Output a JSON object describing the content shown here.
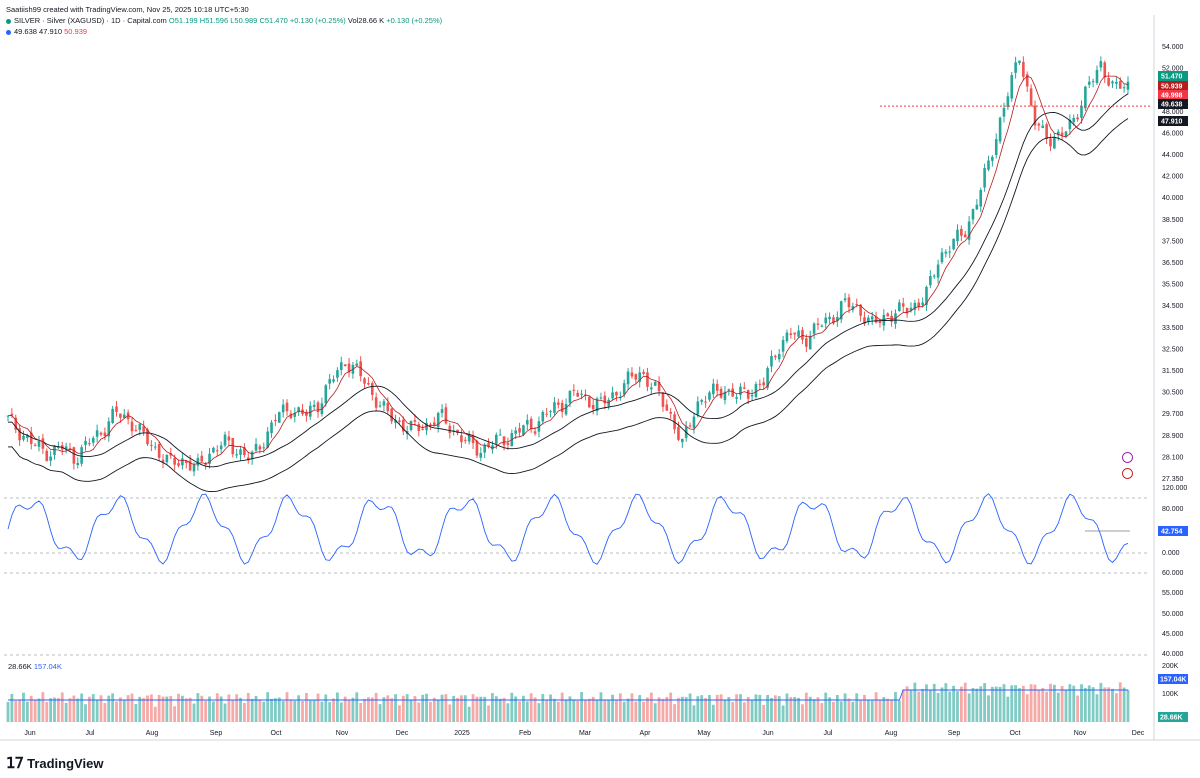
{
  "header": {
    "creator_line": "Saatiish99 created with TradingView.com, Nov 25, 2025 10:18 UTC+5:30",
    "symbol": "SILVER · Silver (XAGUSD) · 1D · Capital.com",
    "ohlc": {
      "o": "O51.199",
      "h": "H51.596",
      "l": "L50.989",
      "c": "C51.470",
      "chg": "+0.130 (+0.25%)"
    },
    "vol": "Vol28.66 K",
    "vol_chg": "+0.130 (+0.25%)",
    "ma_values": {
      "a": "49.638",
      "b": "47.910",
      "c": "50.939"
    }
  },
  "price_tags": [
    {
      "label": "51.470",
      "color": "#089981"
    },
    {
      "label": "50.939",
      "color": "#b71c1c"
    },
    {
      "label": "49.998",
      "color": "#f23645"
    },
    {
      "label": "49.638",
      "color": "#131722"
    },
    {
      "label": "47.910",
      "color": "#131722"
    }
  ],
  "osc_tag": {
    "label": "42.754",
    "color": "#2962ff"
  },
  "vol_tags": [
    {
      "label": "157.04K",
      "color": "#2962ff"
    },
    {
      "label": "28.66K",
      "color": "#26a69a"
    }
  ],
  "volume_legend": {
    "vol": "28.66K",
    "ma": "157.04K"
  },
  "footer": {
    "brand": "TradingView"
  },
  "chart_data": {
    "type": "candlestick",
    "title": "SILVER · Silver (XAGUSD) · 1D · Capital.com",
    "price_axis_ticks": [
      "54.000",
      "52.000",
      "50.000",
      "48.000",
      "46.000",
      "44.000",
      "42.000",
      "40.000",
      "38.500",
      "37.500",
      "36.500",
      "35.500",
      "34.500",
      "33.500",
      "32.500",
      "31.500",
      "30.500",
      "29.700",
      "28.900",
      "28.100",
      "27.350"
    ],
    "oscillator_axis_ticks": [
      "120.000",
      "80.000",
      "40.000",
      "0.000",
      "60.000",
      "55.000",
      "50.000",
      "45.000",
      "40.000"
    ],
    "volume_axis_ticks": [
      "200K",
      "100K"
    ],
    "x_ticks": [
      "Jun",
      "Jul",
      "Aug",
      "Sep",
      "Oct",
      "Nov",
      "Dec",
      "2025",
      "Feb",
      "Mar",
      "Apr",
      "May",
      "Jun",
      "Jul",
      "Aug",
      "Sep",
      "Oct",
      "Nov",
      "Dec"
    ],
    "close_path": [
      [
        "Jun",
        31.0
      ],
      [
        "",
        30.2
      ],
      [
        "",
        29.4
      ],
      [
        "",
        29.0
      ],
      [
        "",
        29.3
      ],
      [
        "",
        28.7
      ],
      [
        "",
        29.6
      ],
      [
        "",
        30.4
      ],
      [
        "Jul",
        31.4
      ],
      [
        "",
        31.0
      ],
      [
        "",
        30.0
      ],
      [
        "",
        29.2
      ],
      [
        "Aug",
        28.3
      ],
      [
        "",
        28.6
      ],
      [
        "",
        28.0
      ],
      [
        "",
        29.1
      ],
      [
        "",
        29.6
      ],
      [
        "Sep",
        29.2
      ],
      [
        "",
        28.6
      ],
      [
        "",
        29.9
      ],
      [
        "",
        31.3
      ],
      [
        "",
        31.7
      ],
      [
        "Oct",
        31.2
      ],
      [
        "",
        32.0
      ],
      [
        "",
        33.4
      ],
      [
        "",
        34.6
      ],
      [
        "",
        33.8
      ],
      [
        "Nov",
        32.6
      ],
      [
        "",
        31.4
      ],
      [
        "",
        30.8
      ],
      [
        "",
        30.4
      ],
      [
        "",
        30.7
      ],
      [
        "Dec",
        31.2
      ],
      [
        "",
        30.4
      ],
      [
        "",
        29.6
      ],
      [
        "",
        29.2
      ],
      [
        "",
        29.6
      ],
      [
        "2025",
        29.9
      ],
      [
        "",
        30.4
      ],
      [
        "",
        30.7
      ],
      [
        "",
        31.4
      ],
      [
        "Feb",
        32.0
      ],
      [
        "",
        32.6
      ],
      [
        "",
        32.2
      ],
      [
        "",
        31.9
      ],
      [
        "Mar",
        32.6
      ],
      [
        "",
        33.4
      ],
      [
        "",
        33.9
      ],
      [
        "",
        32.7
      ],
      [
        "Apr",
        31.5
      ],
      [
        "",
        29.4
      ],
      [
        "",
        32.0
      ],
      [
        "",
        32.5
      ],
      [
        "May",
        32.9
      ],
      [
        "",
        32.4
      ],
      [
        "",
        32.8
      ],
      [
        "",
        33.2
      ],
      [
        "Jun",
        35.4
      ],
      [
        "",
        36.2
      ],
      [
        "",
        35.9
      ],
      [
        "",
        36.6
      ],
      [
        "Jul",
        37.2
      ],
      [
        "",
        38.0
      ],
      [
        "",
        37.8
      ],
      [
        "",
        36.7
      ],
      [
        "Aug",
        37.3
      ],
      [
        "",
        37.5
      ],
      [
        "",
        37.9
      ],
      [
        "",
        38.4
      ],
      [
        "Sep",
        40.9
      ],
      [
        "",
        41.6
      ],
      [
        "",
        42.6
      ],
      [
        "",
        44.6
      ],
      [
        "Oct",
        47.6
      ],
      [
        "",
        50.4
      ],
      [
        "",
        53.3
      ],
      [
        "",
        49.0
      ],
      [
        "",
        48.2
      ],
      [
        "Nov",
        48.0
      ],
      [
        "",
        49.3
      ],
      [
        "",
        51.0
      ],
      [
        "",
        52.6
      ],
      [
        "",
        50.9
      ],
      [
        "",
        51.47
      ]
    ],
    "moving_averages": [
      {
        "value": 49.638,
        "color": "#131722"
      },
      {
        "value": 47.91,
        "color": "#131722"
      },
      {
        "value": 50.939,
        "color": "#b71c1c"
      }
    ],
    "last_close": 51.47,
    "oscillator_last": 42.754,
    "volume_last": "28.66K",
    "volume_ma_last": "157.04K"
  }
}
